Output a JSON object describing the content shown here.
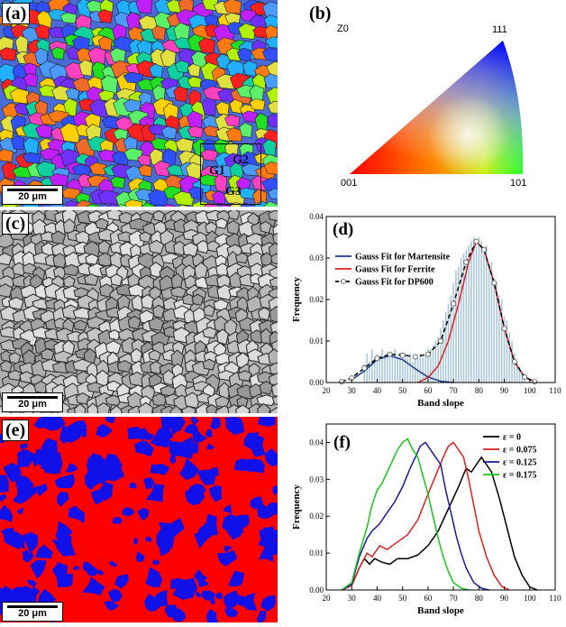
{
  "panels": {
    "a": {
      "label": "(a)",
      "scale": "20 μm",
      "grains": [
        "G1",
        "G2",
        "G3"
      ]
    },
    "b": {
      "label": "(b)",
      "axis": "Z0",
      "corners": [
        "001",
        "101",
        "111"
      ]
    },
    "c": {
      "label": "(c)",
      "scale": "20 μm"
    },
    "d": {
      "label": "(d)"
    },
    "e": {
      "label": "(e)",
      "scale": "20 μm"
    },
    "f": {
      "label": "(f)"
    }
  },
  "chart_data": [
    {
      "id": "d",
      "type": "bar+line",
      "title": "",
      "xlabel": "Band slope",
      "ylabel": "Frequency",
      "xlim": [
        20,
        110
      ],
      "ylim": [
        0,
        0.04
      ],
      "xticks": [
        "20",
        "30",
        "40",
        "50",
        "60",
        "70",
        "80",
        "90",
        "100",
        "110"
      ],
      "yticks": [
        "0.00",
        "0.01",
        "0.02",
        "0.03",
        "0.04"
      ],
      "histogram": {
        "x": [
          35,
          36,
          37,
          38,
          39,
          40,
          41,
          42,
          43,
          44,
          45,
          46,
          47,
          48,
          49,
          50,
          51,
          52,
          53,
          54,
          55,
          56,
          57,
          58,
          59,
          60,
          61,
          62,
          63,
          64,
          65,
          66,
          67,
          68,
          69,
          70,
          71,
          72,
          73,
          74,
          75,
          76,
          77,
          78,
          79,
          80,
          81,
          82,
          83,
          84,
          85,
          86,
          87,
          88,
          89,
          90,
          91,
          92,
          93,
          94,
          95,
          96,
          97,
          98
        ],
        "values": [
          0.0045,
          0.007,
          0.005,
          0.008,
          0.006,
          0.007,
          0.006,
          0.008,
          0.006,
          0.007,
          0.006,
          0.007,
          0.008,
          0.006,
          0.007,
          0.006,
          0.007,
          0.006,
          0.007,
          0.005,
          0.006,
          0.006,
          0.007,
          0.006,
          0.0065,
          0.008,
          0.008,
          0.009,
          0.01,
          0.011,
          0.013,
          0.015,
          0.017,
          0.019,
          0.021,
          0.024,
          0.027,
          0.028,
          0.03,
          0.031,
          0.032,
          0.033,
          0.034,
          0.035,
          0.033,
          0.035,
          0.034,
          0.031,
          0.033,
          0.028,
          0.029,
          0.025,
          0.024,
          0.021,
          0.02,
          0.016,
          0.015,
          0.012,
          0.01,
          0.007,
          0.005,
          0.004,
          0.0025,
          0.001
        ]
      },
      "series": [
        {
          "name": "Gauss Fit for Martensite",
          "color": "#1a3a8a",
          "x": [
            30,
            35,
            40,
            45,
            50,
            55,
            60,
            65,
            70
          ],
          "y": [
            0.0006,
            0.0028,
            0.0055,
            0.0065,
            0.0055,
            0.0033,
            0.0013,
            0.0003,
            0.0
          ]
        },
        {
          "name": "Gauss Fit for Ferrite",
          "color": "#e02020",
          "x": [
            56,
            60,
            64,
            68,
            72,
            76,
            79,
            82,
            86,
            90,
            94,
            98,
            102
          ],
          "y": [
            0.0,
            0.0012,
            0.004,
            0.01,
            0.019,
            0.029,
            0.034,
            0.032,
            0.024,
            0.013,
            0.005,
            0.0013,
            0.0002
          ]
        },
        {
          "name": "Gauss Fit for DP600",
          "color": "#000000",
          "x": [
            26,
            30,
            35,
            40,
            45,
            50,
            55,
            60,
            65,
            70,
            75,
            79,
            82,
            86,
            90,
            94,
            98,
            102
          ],
          "y": [
            0.0002,
            0.0011,
            0.0035,
            0.0058,
            0.0068,
            0.0066,
            0.0062,
            0.0068,
            0.01,
            0.019,
            0.029,
            0.034,
            0.032,
            0.024,
            0.013,
            0.005,
            0.0013,
            0.0002
          ]
        }
      ],
      "legend": "top-left"
    },
    {
      "id": "f",
      "type": "line",
      "title": "",
      "xlabel": "Band slope",
      "ylabel": "Frequency",
      "xlim": [
        20,
        110
      ],
      "ylim": [
        0,
        0.045
      ],
      "xticks": [
        "20",
        "30",
        "40",
        "50",
        "60",
        "70",
        "80",
        "90",
        "100",
        "110"
      ],
      "yticks": [
        "0.00",
        "0.01",
        "0.02",
        "0.03",
        "0.04"
      ],
      "series": [
        {
          "name": "ε = 0",
          "color": "#000000",
          "x": [
            26,
            30,
            33,
            35,
            37,
            39,
            42,
            45,
            48,
            52,
            56,
            60,
            64,
            68,
            72,
            75,
            77,
            79,
            81,
            83,
            85,
            88,
            91,
            94,
            97,
            100,
            103
          ],
          "y": [
            0.0,
            0.0012,
            0.006,
            0.0085,
            0.007,
            0.0085,
            0.0075,
            0.007,
            0.0085,
            0.0085,
            0.0095,
            0.012,
            0.016,
            0.022,
            0.028,
            0.033,
            0.032,
            0.034,
            0.036,
            0.034,
            0.032,
            0.025,
            0.017,
            0.009,
            0.004,
            0.0008,
            0.0
          ]
        },
        {
          "name": "ε = 0.075",
          "color": "#e02020",
          "x": [
            26,
            30,
            33,
            36,
            38,
            41,
            44,
            48,
            52,
            56,
            60,
            63,
            66,
            68,
            70,
            72,
            74,
            76,
            78,
            80,
            83,
            86,
            89,
            92
          ],
          "y": [
            0.0,
            0.0012,
            0.006,
            0.01,
            0.009,
            0.012,
            0.011,
            0.013,
            0.015,
            0.019,
            0.026,
            0.031,
            0.036,
            0.039,
            0.04,
            0.038,
            0.036,
            0.03,
            0.023,
            0.016,
            0.009,
            0.004,
            0.001,
            0.0
          ]
        },
        {
          "name": "ε = 0.125",
          "color": "#1a1aa0",
          "x": [
            26,
            30,
            33,
            36,
            38,
            41,
            44,
            47,
            50,
            53,
            55,
            57,
            59,
            61,
            63,
            65,
            67,
            69,
            71,
            73,
            75,
            78,
            81,
            84
          ],
          "y": [
            0.0,
            0.0015,
            0.009,
            0.014,
            0.016,
            0.018,
            0.021,
            0.024,
            0.028,
            0.033,
            0.036,
            0.039,
            0.04,
            0.038,
            0.036,
            0.034,
            0.027,
            0.021,
            0.015,
            0.01,
            0.006,
            0.002,
            0.0005,
            0.0
          ]
        },
        {
          "name": "ε = 0.175",
          "color": "#18c818",
          "x": [
            26,
            30,
            33,
            36,
            38,
            40,
            42,
            44,
            46,
            48,
            50,
            52,
            54,
            56,
            58,
            60,
            62,
            64,
            66,
            68,
            70,
            73,
            76
          ],
          "y": [
            0.0,
            0.002,
            0.01,
            0.017,
            0.023,
            0.027,
            0.029,
            0.032,
            0.035,
            0.038,
            0.04,
            0.041,
            0.038,
            0.036,
            0.031,
            0.026,
            0.02,
            0.014,
            0.009,
            0.005,
            0.002,
            0.0005,
            0.0
          ]
        }
      ],
      "legend": "top-right"
    }
  ]
}
